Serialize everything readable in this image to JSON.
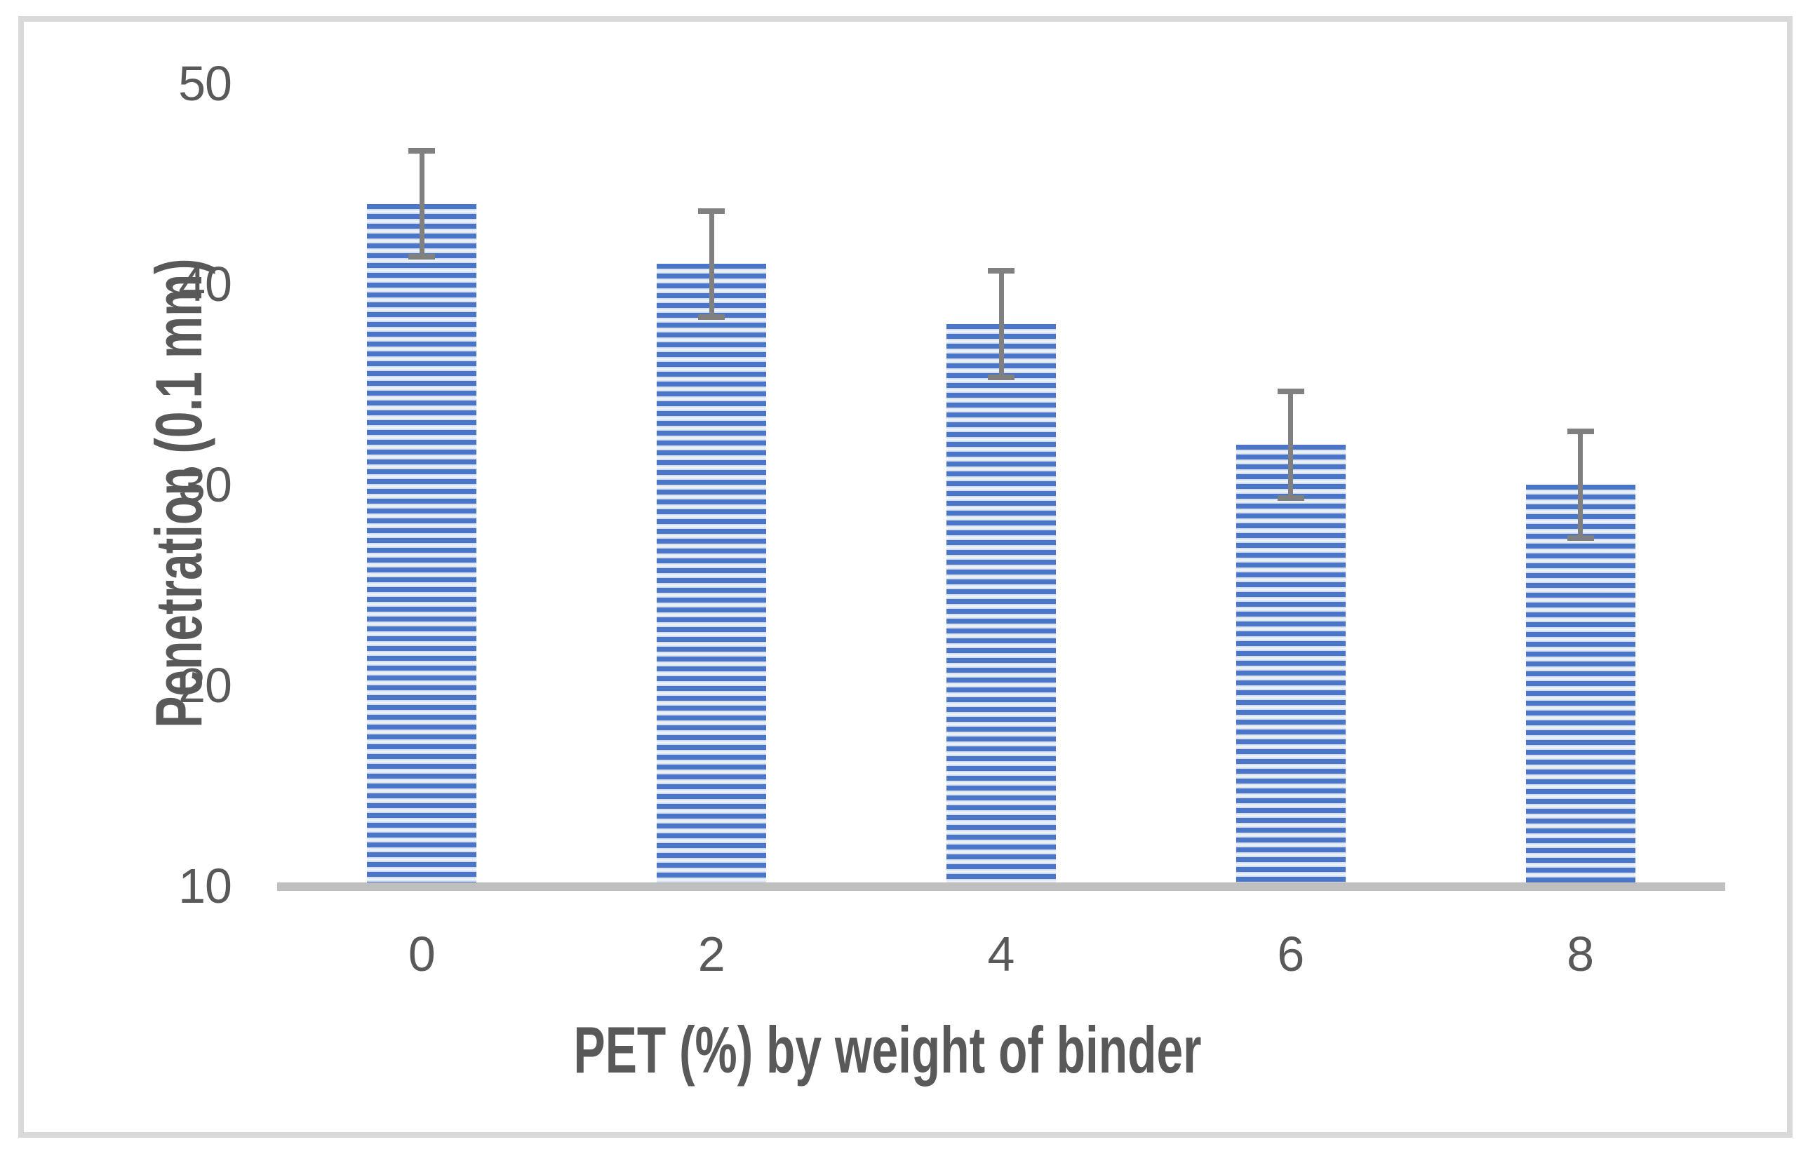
{
  "chart_data": {
    "type": "bar",
    "title": "",
    "categories": [
      "0",
      "2",
      "4",
      "6",
      "8"
    ],
    "values": [
      44,
      41,
      38,
      32,
      30
    ],
    "errors": [
      2.65,
      2.65,
      2.65,
      2.65,
      2.65
    ],
    "xlabel": "PET (%) by weight of binder",
    "ylabel": "Penetration (0.1 mm)",
    "ylim": [
      10,
      50
    ],
    "y_ticks": [
      10,
      20,
      30,
      40,
      50
    ],
    "grid": false,
    "legend": false,
    "bar_color": "#4472c4",
    "bar_pattern": "horizontal-stripes",
    "bar_stripe_light_color": "#dbe5f4",
    "error_bar_color": "#808080",
    "axis_line_color": "#bfbfbf",
    "text_color": "#595959",
    "frame_border_color": "#d9d9d9",
    "background_color": "#ffffff"
  }
}
